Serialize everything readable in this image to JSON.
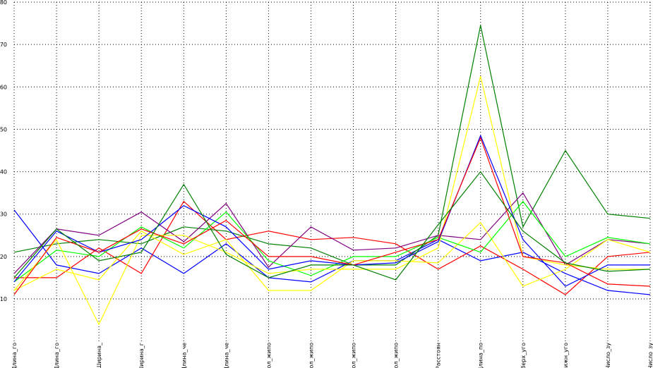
{
  "chart_data": {
    "type": "line",
    "title": "",
    "xlabel": "",
    "ylabel": "",
    "ylim": [
      -8,
      80
    ],
    "grid": true,
    "legend": "none",
    "yticks": [
      10,
      20,
      30,
      40,
      50,
      60,
      70,
      80
    ],
    "categories": [
      "Длина_го",
      "Длина_го",
      "Ширина_",
      "Ширина_г",
      "Длина_че",
      "Длина_че",
      "Кол_жипо",
      "Кол_жипо",
      "Кол_жипо",
      "Кол_жипо",
      "Расстоян",
      "Длина_по",
      "Верх_уго",
      "Нижн_уго",
      "Число_зу",
      "Число_зу"
    ],
    "series": [
      {
        "color": "#0000ff",
        "values": [
          31,
          18,
          16,
          22,
          16,
          23,
          15,
          14,
          19,
          19,
          24,
          19,
          21,
          16,
          12,
          11
        ]
      },
      {
        "color": "#ff0000",
        "values": [
          15,
          15,
          22,
          16,
          33,
          24,
          26,
          24,
          24.5,
          23,
          17,
          22.5,
          17,
          11,
          20,
          21
        ]
      },
      {
        "color": "#008000",
        "values": [
          21,
          23,
          24,
          23,
          27,
          26,
          23,
          22,
          18,
          18,
          25,
          74.5,
          27,
          45,
          30,
          29
        ]
      },
      {
        "color": "#800080",
        "values": [
          16,
          26.5,
          25,
          30.5,
          23.5,
          32.5,
          17.5,
          27,
          21.5,
          22,
          25,
          24,
          35,
          18,
          24,
          23
        ]
      },
      {
        "color": "#ffff00",
        "values": [
          12,
          17,
          14.5,
          26,
          20.5,
          24,
          12,
          12,
          19,
          19,
          18.5,
          28,
          13,
          17,
          24,
          21
        ]
      },
      {
        "color": "#00ff00",
        "values": [
          14,
          21.5,
          20,
          27,
          22,
          30.5,
          19,
          15.5,
          20,
          20,
          24.5,
          21,
          33,
          20,
          24.5,
          23
        ]
      },
      {
        "color": "#ffff00",
        "values": [
          12,
          24,
          4,
          25,
          25,
          21,
          16,
          17,
          17,
          17,
          22,
          62.5,
          20,
          18,
          17,
          17
        ]
      },
      {
        "color": "#0000ff",
        "values": [
          14,
          26,
          21,
          24,
          32,
          27,
          17,
          19,
          18,
          18.5,
          23.5,
          48.5,
          24,
          13,
          18,
          18
        ]
      },
      {
        "color": "#ff0000",
        "values": [
          11,
          24.5,
          21,
          26.5,
          23,
          28.5,
          20,
          20,
          18,
          21,
          24,
          48,
          20,
          18.5,
          13.5,
          13
        ]
      },
      {
        "color": "#008000",
        "values": [
          15,
          26.5,
          19,
          21,
          37,
          20.5,
          15,
          18,
          18,
          14.5,
          27.5,
          40,
          26,
          18.5,
          16.5,
          17
        ]
      }
    ]
  }
}
